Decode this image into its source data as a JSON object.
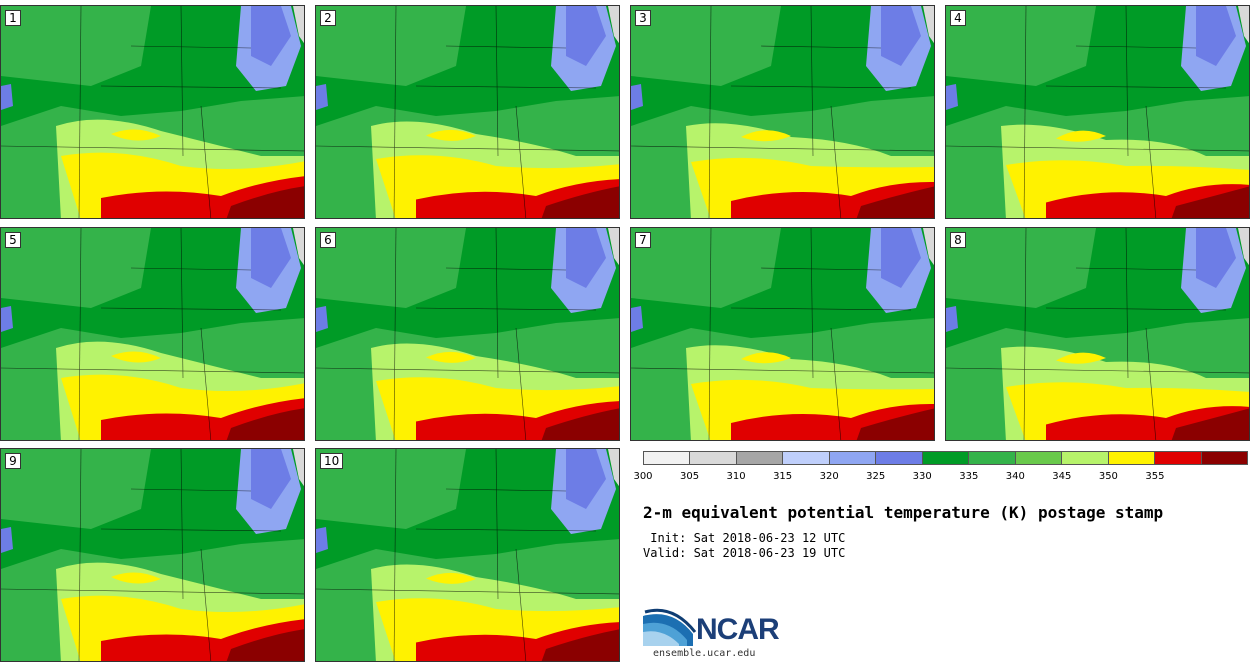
{
  "panels": [
    {
      "label": "1"
    },
    {
      "label": "2"
    },
    {
      "label": "3"
    },
    {
      "label": "4"
    },
    {
      "label": "5"
    },
    {
      "label": "6"
    },
    {
      "label": "7"
    },
    {
      "label": "8"
    },
    {
      "label": "9"
    },
    {
      "label": "10"
    }
  ],
  "colorbar": {
    "colors": [
      "#f2f2f2",
      "#d9d9d9",
      "#a6a6a6",
      "#bfcffb",
      "#8fa6f2",
      "#6d7de6",
      "#009b26",
      "#34b34a",
      "#69c94b",
      "#b7f36b",
      "#fff200",
      "#e00000",
      "#8b0000"
    ],
    "ticks": [
      "300",
      "305",
      "310",
      "315",
      "320",
      "325",
      "330",
      "335",
      "340",
      "345",
      "350",
      "355"
    ]
  },
  "title": "2-m equivalent potential temperature (K) postage stamp",
  "init": " Init: Sat 2018-06-23 12 UTC",
  "valid": "Valid: Sat 2018-06-23 19 UTC",
  "logo": {
    "name": "NCAR",
    "url": "ensemble.ucar.edu"
  }
}
